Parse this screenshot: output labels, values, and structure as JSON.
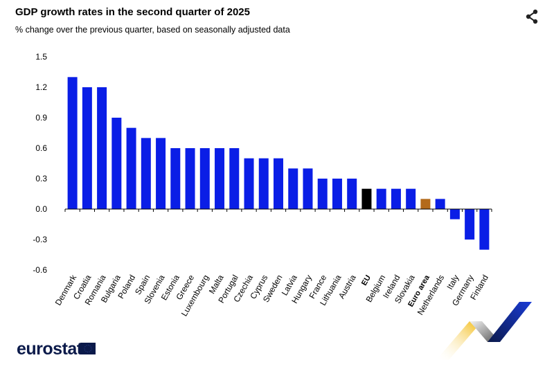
{
  "header": {
    "title": "GDP growth rates in the second quarter of 2025",
    "subtitle": "% change over the previous quarter, based on seasonally adjusted data"
  },
  "icons": {
    "share": "share-icon"
  },
  "footer": {
    "logo_text": "eurostat"
  },
  "colors": {
    "default": "#0a1ee6",
    "eu": "#000000",
    "euro_area": "#b36a1b",
    "brand": "#0b1a4a"
  },
  "chart_data": {
    "type": "bar",
    "title": "GDP growth rates in the second quarter of 2025",
    "subtitle": "% change over the previous quarter, based on seasonally adjusted data",
    "xlabel": "",
    "ylabel": "",
    "ylim": [
      -0.6,
      1.5
    ],
    "yticks": [
      1.5,
      1.2,
      0.9,
      0.6,
      0.3,
      0.0,
      -0.3,
      -0.6
    ],
    "ytick_labels": [
      "1.5",
      "1.2",
      "0.9",
      "0.6",
      "0.3",
      "0.0",
      "-0.3",
      "-0.6"
    ],
    "grid": false,
    "legend": "none",
    "categories": [
      "Denmark",
      "Croatia",
      "Romania",
      "Bulgaria",
      "Poland",
      "Spain",
      "Slovenia",
      "Estonia",
      "Greece",
      "Luxembourg",
      "Malta",
      "Portugal",
      "Czechia",
      "Cyprus",
      "Sweden",
      "Latvia",
      "Hungary",
      "France",
      "Lithuania",
      "Austria",
      "EU",
      "Belgium",
      "Ireland",
      "Slovakia",
      "Euro area",
      "Netherlands",
      "Italy",
      "Germany",
      "Finland"
    ],
    "values": [
      1.3,
      1.2,
      1.2,
      0.9,
      0.8,
      0.7,
      0.7,
      0.6,
      0.6,
      0.6,
      0.6,
      0.6,
      0.5,
      0.5,
      0.5,
      0.4,
      0.4,
      0.3,
      0.3,
      0.3,
      0.2,
      0.2,
      0.2,
      0.2,
      0.1,
      0.1,
      -0.1,
      -0.3,
      -0.4
    ],
    "highlights": {
      "EU": {
        "color": "#000000",
        "bold": true
      },
      "Euro area": {
        "color": "#b36a1b",
        "bold": true
      }
    }
  }
}
